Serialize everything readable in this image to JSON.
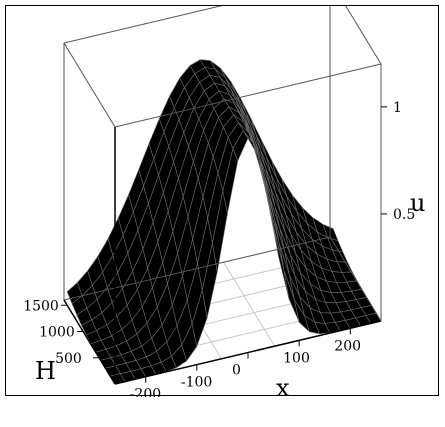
{
  "chart_data": {
    "type": "surface",
    "title": "",
    "xlabel": "x",
    "ylabel": "H",
    "zlabel": "u",
    "x_ticks": [
      "-200",
      "-100",
      "0",
      "100",
      "200"
    ],
    "y_ticks": [
      "1500",
      "1000",
      "500"
    ],
    "z_ticks": [
      "1",
      "0.5"
    ],
    "xlim": [
      -260,
      260
    ],
    "ylim": [
      0,
      1600
    ],
    "zlim": [
      0,
      1.2
    ],
    "grid": true,
    "surface": {
      "description_formula": "u = exp(-(x^2)/(2*s(H)^2)), s grows with H",
      "peak_u": 1.0,
      "x_samples": [
        -260,
        -240,
        -220,
        -200,
        -180,
        -160,
        -140,
        -120,
        -100,
        -80,
        -60,
        -40,
        -20,
        0,
        20,
        40,
        60,
        80,
        100,
        120,
        140,
        160,
        180,
        200,
        220,
        240,
        260
      ],
      "H_samples": [
        0,
        150,
        300,
        450,
        600,
        750,
        900,
        1050,
        1200,
        1350,
        1500
      ],
      "sigma_at_H_min": 45,
      "sigma_at_H_max": 115
    },
    "colors": {
      "surface": "#000000",
      "mesh": "#6b6b6b",
      "axes": "#000000",
      "grid": "#c8c8c8"
    }
  }
}
